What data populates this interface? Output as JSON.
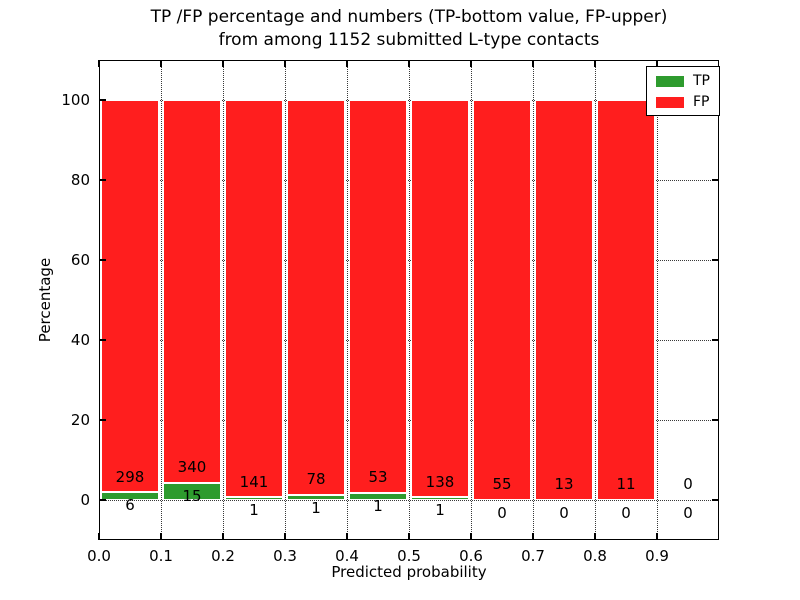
{
  "title": {
    "line1": "TP /FP percentage and numbers (TP-bottom value, FP-upper)",
    "line2": "from among 1152 submitted L-type contacts"
  },
  "axes": {
    "xlabel": "Predicted probability",
    "ylabel": "Percentage",
    "x_tick_labels": [
      "0.0",
      "0.1",
      "0.2",
      "0.3",
      "0.4",
      "0.5",
      "0.6",
      "0.7",
      "0.8",
      "0.9"
    ],
    "x_tick_values": [
      0.0,
      0.1,
      0.2,
      0.3,
      0.4,
      0.5,
      0.6,
      0.7,
      0.8,
      0.9
    ],
    "y_tick_labels": [
      "0",
      "20",
      "40",
      "60",
      "80",
      "100"
    ],
    "y_tick_values": [
      0,
      20,
      40,
      60,
      80,
      100
    ],
    "xlim": [
      0.0,
      1.0
    ],
    "ylim": [
      -10,
      110
    ],
    "grid": "dotted"
  },
  "legend": {
    "position": "upper right",
    "entries": [
      {
        "label": "TP",
        "color": "#2e9b2e"
      },
      {
        "label": "FP",
        "color": "#ff1e1e"
      }
    ]
  },
  "colors": {
    "tp": "#2e9b2e",
    "fp": "#ff1e1e",
    "bar_edge": "#ffffff",
    "background": "#ffffff"
  },
  "chart_data": {
    "type": "bar",
    "stacked": true,
    "total_contacts": 1152,
    "bin_width": 0.1,
    "categories": [
      "0.0-0.1",
      "0.1-0.2",
      "0.2-0.3",
      "0.3-0.4",
      "0.4-0.5",
      "0.5-0.6",
      "0.6-0.7",
      "0.7-0.8",
      "0.8-0.9",
      "0.9-1.0"
    ],
    "bin_starts": [
      0.0,
      0.1,
      0.2,
      0.3,
      0.4,
      0.5,
      0.6,
      0.7,
      0.8,
      0.9
    ],
    "series": [
      {
        "name": "TP",
        "counts": [
          6,
          15,
          1,
          1,
          1,
          1,
          0,
          0,
          0,
          0
        ],
        "percent": [
          1.97,
          4.23,
          0.7,
          1.27,
          1.85,
          0.72,
          0,
          0,
          0,
          0
        ]
      },
      {
        "name": "FP",
        "counts": [
          298,
          340,
          141,
          78,
          53,
          138,
          55,
          13,
          11,
          0
        ],
        "percent": [
          98.03,
          95.77,
          99.3,
          98.73,
          98.15,
          99.28,
          100,
          100,
          100,
          0
        ]
      }
    ],
    "tp": [
      6,
      15,
      1,
      1,
      1,
      1,
      0,
      0,
      0,
      0
    ],
    "fp": [
      298,
      340,
      141,
      78,
      53,
      138,
      55,
      13,
      11,
      0
    ],
    "tp_pct": [
      1.97,
      4.23,
      0.7,
      1.27,
      1.85,
      0.72,
      0,
      0,
      0,
      0
    ],
    "fp_pct": [
      98.03,
      95.77,
      99.3,
      98.73,
      98.15,
      99.28,
      100,
      100,
      100,
      0
    ]
  }
}
